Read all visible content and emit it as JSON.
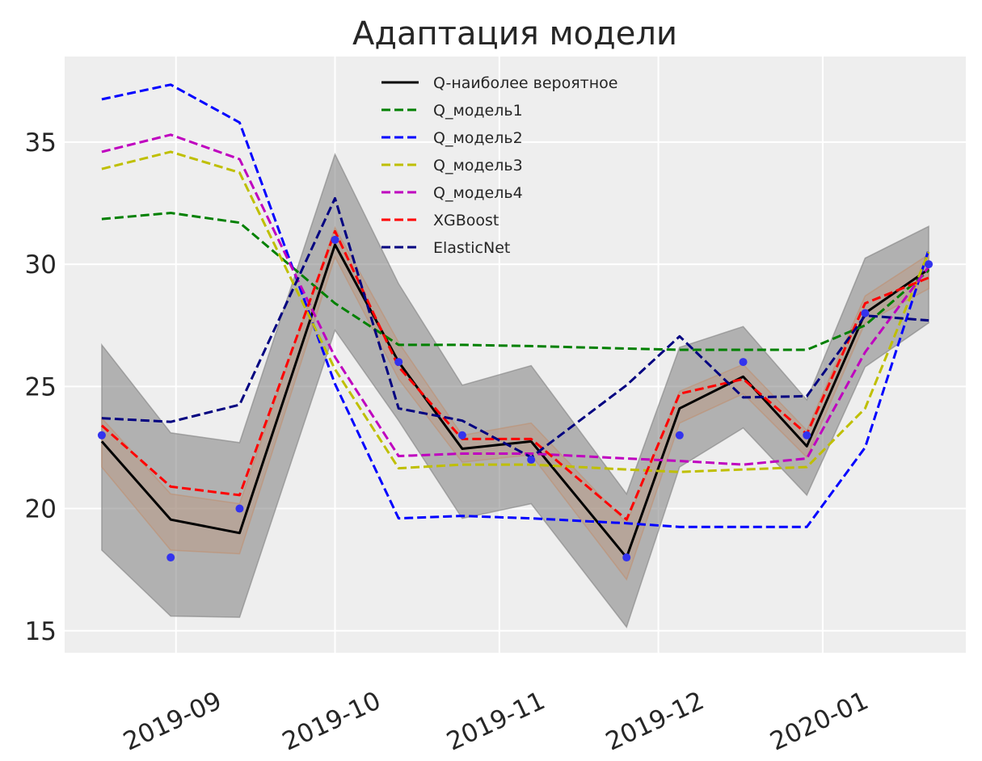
{
  "chart_data": {
    "type": "line",
    "title": "Адаптация модели",
    "xlabel": "",
    "ylabel": "",
    "x_axis": {
      "type": "date",
      "range": [
        "2019-08-11",
        "2020-01-28"
      ],
      "ticks": [
        "2019-09-01",
        "2019-10-01",
        "2019-11-01",
        "2019-12-01",
        "2020-01-01"
      ],
      "tick_labels": [
        "2019-09",
        "2019-10",
        "2019-11",
        "2019-12",
        "2020-01"
      ]
    },
    "y_axis": {
      "range": [
        14.1,
        38.5
      ],
      "ticks": [
        15,
        20,
        25,
        30,
        35
      ],
      "tick_labels": [
        "15",
        "20",
        "25",
        "30",
        "35"
      ]
    },
    "grid": true,
    "legend_position": "top-center",
    "x": [
      "2019-08-18",
      "2019-08-31",
      "2019-09-13",
      "2019-10-01",
      "2019-10-13",
      "2019-10-25",
      "2019-11-07",
      "2019-11-25",
      "2019-12-05",
      "2019-12-17",
      "2019-12-29",
      "2020-01-09",
      "2020-01-21"
    ],
    "bands": [
      {
        "name": "outer",
        "color": "#808080",
        "lower": [
          18.3,
          15.6,
          15.55,
          27.3,
          23.6,
          19.6,
          20.2,
          15.15,
          21.7,
          23.3,
          20.55,
          25.8,
          27.6
        ],
        "upper": [
          26.7,
          23.1,
          22.7,
          34.5,
          29.2,
          25.05,
          25.85,
          20.6,
          26.6,
          27.45,
          24.45,
          30.25,
          31.55
        ]
      },
      {
        "name": "inner",
        "color": "#c09070",
        "lower": [
          21.7,
          18.3,
          18.15,
          30.3,
          25.3,
          21.9,
          22.2,
          17.1,
          23.5,
          24.7,
          22.1,
          27.6,
          29.0
        ],
        "upper": [
          23.7,
          20.6,
          20.2,
          31.5,
          26.8,
          23.0,
          23.5,
          19.4,
          24.8,
          25.9,
          23.2,
          28.7,
          30.4
        ]
      }
    ],
    "observed": {
      "color": "#3333ee",
      "values": [
        23,
        18,
        20,
        31,
        26,
        23,
        22,
        18,
        23,
        26,
        23,
        28,
        30
      ]
    },
    "series": [
      {
        "name": "Q-наиболее вероятное",
        "color": "#000000",
        "dashed": false,
        "values": [
          22.75,
          19.55,
          19.0,
          30.8,
          26.0,
          22.45,
          22.75,
          18.0,
          24.1,
          25.4,
          22.55,
          28.0,
          29.8
        ]
      },
      {
        "name": "Q_модель1",
        "color": "#008000",
        "dashed": true,
        "values": [
          31.85,
          32.1,
          31.7,
          28.4,
          26.7,
          26.7,
          26.65,
          26.55,
          26.5,
          26.5,
          26.5,
          27.5,
          29.75
        ]
      },
      {
        "name": "Q_модель2",
        "color": "#0000ff",
        "dashed": true,
        "values": [
          36.75,
          37.35,
          35.8,
          25.1,
          19.6,
          19.7,
          19.6,
          19.4,
          19.25,
          19.25,
          19.25,
          22.5,
          30.6
        ]
      },
      {
        "name": "Q_модель3",
        "color": "#bfbf00",
        "dashed": true,
        "values": [
          33.9,
          34.6,
          33.75,
          25.7,
          21.65,
          21.8,
          21.8,
          21.6,
          21.5,
          21.6,
          21.7,
          24.1,
          30.5
        ]
      },
      {
        "name": "Q_модель4",
        "color": "#bf00bf",
        "dashed": true,
        "values": [
          34.6,
          35.3,
          34.3,
          26.2,
          22.15,
          22.25,
          22.25,
          22.05,
          21.95,
          21.8,
          22.05,
          26.4,
          29.9
        ]
      },
      {
        "name": "XGBoost",
        "color": "#ff0000",
        "dashed": true,
        "values": [
          23.4,
          20.9,
          20.55,
          31.35,
          25.8,
          22.85,
          22.85,
          19.55,
          24.7,
          25.3,
          23.05,
          28.4,
          29.45
        ]
      },
      {
        "name": "ElasticNet",
        "color": "#000080",
        "dashed": true,
        "values": [
          23.7,
          23.55,
          24.25,
          32.7,
          24.1,
          23.6,
          22.1,
          25.05,
          27.05,
          24.55,
          24.6,
          27.9,
          27.7
        ]
      }
    ]
  }
}
